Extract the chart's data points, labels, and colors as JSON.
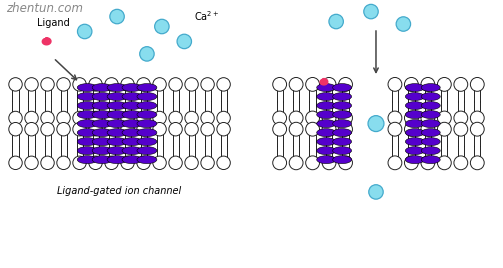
{
  "bg_color": "#ffffff",
  "watermark": "zhentun.com",
  "watermark_color": "#888888",
  "title_bottom": "Ligand-gated ion channel",
  "label_ligand": "Ligand",
  "purple": "#5500cc",
  "cyan_color": "#88ddee",
  "cyan_edge": "#44aacc",
  "white": "#ffffff",
  "dark": "#222222",
  "pink": "#cc2255",
  "pink2": "#ee3366",
  "arrow_color": "#444444",
  "fig_width": 5.03,
  "fig_height": 2.68
}
